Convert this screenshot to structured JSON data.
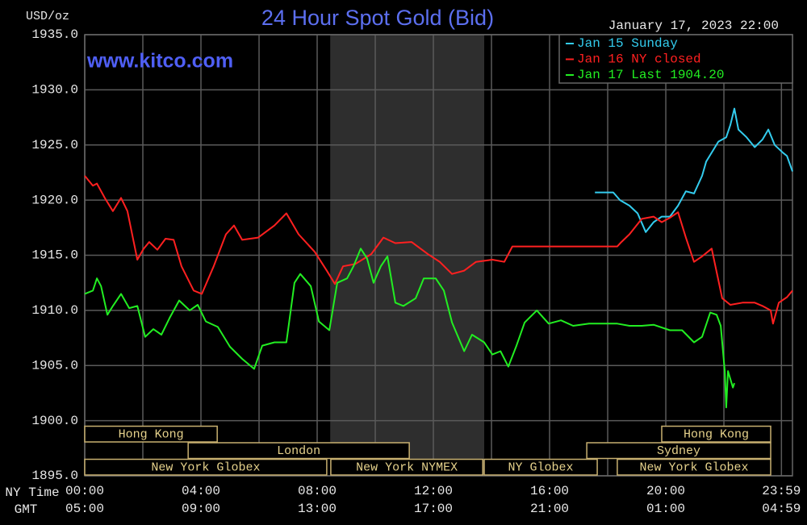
{
  "chart_data": {
    "type": "line",
    "title": "24 Hour Spot Gold (Bid)",
    "watermark": "www.kitco.com",
    "y_unit": "USD/oz",
    "timestamp": "January 17, 2023 22:00",
    "x_label": "NY Time",
    "x2_label": "GMT",
    "xlim": [
      0,
      24.36
    ],
    "ylim": [
      1895,
      1935
    ],
    "yticks": [
      {
        "value": 1895,
        "label": "1895.0"
      },
      {
        "value": 1900,
        "label": "1900.0"
      },
      {
        "value": 1905,
        "label": "1905.0"
      },
      {
        "value": 1910,
        "label": "1910.0"
      },
      {
        "value": 1915,
        "label": "1915.0"
      },
      {
        "value": 1920,
        "label": "1920.0"
      },
      {
        "value": 1925,
        "label": "1925.0"
      },
      {
        "value": 1930,
        "label": "1930.0"
      },
      {
        "value": 1935,
        "label": "1935.0"
      }
    ],
    "xticks": [
      {
        "value": 0,
        "label": "00:00"
      },
      {
        "value": 4,
        "label": "04:00"
      },
      {
        "value": 8,
        "label": "08:00"
      },
      {
        "value": 12,
        "label": "12:00"
      },
      {
        "value": 16,
        "label": "16:00"
      },
      {
        "value": 20,
        "label": "20:00"
      },
      {
        "value": 23.98,
        "label": "23:59"
      }
    ],
    "gmt_labels": [
      "05:00",
      "09:00",
      "13:00",
      "17:00",
      "21:00",
      "01:00",
      "04:59"
    ],
    "xminorticks": [
      2,
      6,
      10,
      14,
      18,
      22
    ],
    "grid": true,
    "legend": "upper right",
    "shaded": [
      8.45,
      13.75
    ],
    "session_rows": [
      [
        {
          "name": "Hong Kong",
          "start": 0,
          "end": 4.56
        },
        {
          "name": "Hong Kong",
          "start": 19.86,
          "end": 23.61
        }
      ],
      [
        {
          "name": "London",
          "start": 3.56,
          "end": 11.17
        },
        {
          "name": "Sydney",
          "start": 17.28,
          "end": 23.61
        }
      ],
      [
        {
          "name": "New York Globex",
          "start": 0,
          "end": 8.33
        },
        {
          "name": "New York NYMEX",
          "start": 8.47,
          "end": 13.7
        },
        {
          "name": "NY Globex",
          "start": 13.75,
          "end": 17.64
        },
        {
          "name": "New York Globex",
          "start": 18.33,
          "end": 23.61
        }
      ]
    ],
    "series": [
      {
        "name": "Jan 15 Sunday",
        "color": "#33ccee",
        "x": [
          17.56,
          18.19,
          18.42,
          18.75,
          19.03,
          19.31,
          19.58,
          19.86,
          20.14,
          20.42,
          20.69,
          20.97,
          21.25,
          21.39,
          21.53,
          21.81,
          22.08,
          22.22,
          22.36,
          22.5,
          22.78,
          23.06,
          23.33,
          23.53,
          23.75,
          24.03,
          24.17,
          24.36
        ],
        "values": [
          1920.7,
          1920.7,
          1920.0,
          1919.5,
          1918.8,
          1917.1,
          1918.0,
          1918.5,
          1918.5,
          1919.5,
          1920.8,
          1920.6,
          1922.2,
          1923.5,
          1924.1,
          1925.3,
          1925.7,
          1926.8,
          1928.3,
          1926.4,
          1925.7,
          1924.8,
          1925.5,
          1926.4,
          1925.0,
          1924.3,
          1924.0,
          1922.6
        ]
      },
      {
        "name": "Jan 16 NY closed",
        "color": "#ff2020",
        "x": [
          0,
          0.28,
          0.42,
          0.69,
          0.97,
          1.25,
          1.47,
          1.81,
          2.03,
          2.22,
          2.5,
          2.78,
          3.06,
          3.33,
          3.75,
          4.03,
          4.44,
          4.86,
          5.14,
          5.42,
          5.97,
          6.53,
          6.94,
          7.36,
          7.92,
          8.33,
          8.61,
          8.89,
          9.31,
          9.86,
          10.28,
          10.69,
          11.25,
          11.81,
          12.22,
          12.64,
          13.06,
          13.47,
          14.03,
          14.44,
          14.72,
          16.53,
          18.33,
          18.47,
          18.75,
          19.17,
          19.58,
          19.86,
          20.14,
          20.42,
          20.69,
          20.97,
          21.25,
          21.58,
          21.94,
          22.22,
          22.64,
          23.06,
          23.33,
          23.61,
          23.69,
          23.89,
          24.17,
          24.36
        ],
        "values": [
          1922.2,
          1921.3,
          1921.5,
          1920.2,
          1919.0,
          1920.2,
          1919.0,
          1914.6,
          1915.6,
          1916.2,
          1915.5,
          1916.5,
          1916.4,
          1914.0,
          1911.8,
          1911.5,
          1914.0,
          1916.9,
          1917.7,
          1916.4,
          1916.6,
          1917.7,
          1918.8,
          1916.9,
          1915.3,
          1913.6,
          1912.4,
          1914.0,
          1914.2,
          1915.1,
          1916.6,
          1916.1,
          1916.2,
          1915.1,
          1914.4,
          1913.3,
          1913.6,
          1914.4,
          1914.6,
          1914.4,
          1915.8,
          1915.8,
          1915.8,
          1916.2,
          1916.9,
          1918.3,
          1918.5,
          1918.0,
          1918.4,
          1918.9,
          1916.6,
          1914.4,
          1914.9,
          1915.6,
          1911.1,
          1910.5,
          1910.7,
          1910.7,
          1910.4,
          1910.0,
          1908.8,
          1910.7,
          1911.2,
          1911.8
        ]
      },
      {
        "name": "Jan 17 Last 1904.20",
        "color": "#22ee22",
        "x": [
          0,
          0.28,
          0.42,
          0.56,
          0.78,
          0.97,
          1.25,
          1.53,
          1.81,
          2.08,
          2.36,
          2.64,
          2.92,
          3.25,
          3.61,
          3.89,
          4.17,
          4.58,
          5.0,
          5.42,
          5.83,
          6.11,
          6.53,
          6.94,
          7.22,
          7.42,
          7.78,
          8.06,
          8.42,
          8.69,
          9.03,
          9.25,
          9.5,
          9.72,
          9.94,
          10.19,
          10.42,
          10.69,
          10.97,
          11.39,
          11.67,
          12.08,
          12.36,
          12.64,
          13.06,
          13.33,
          13.75,
          14.03,
          14.31,
          14.58,
          14.86,
          15.14,
          15.56,
          15.97,
          16.39,
          16.81,
          17.36,
          18.33,
          18.75,
          19.17,
          19.58,
          20.14,
          20.56,
          20.97,
          21.25,
          21.53,
          21.75,
          21.89,
          22.03,
          22.08,
          22.14,
          22.31,
          22.36
        ],
        "values": [
          1911.5,
          1911.8,
          1912.9,
          1912.2,
          1909.6,
          1910.4,
          1911.5,
          1910.2,
          1910.4,
          1907.6,
          1908.3,
          1907.8,
          1909.3,
          1910.9,
          1910.0,
          1910.5,
          1909.0,
          1908.5,
          1906.7,
          1905.6,
          1904.7,
          1906.8,
          1907.1,
          1907.1,
          1912.5,
          1913.3,
          1912.2,
          1909.0,
          1908.2,
          1912.5,
          1912.9,
          1914.0,
          1915.6,
          1914.7,
          1912.5,
          1914.0,
          1914.9,
          1910.7,
          1910.4,
          1911.1,
          1912.9,
          1912.9,
          1911.8,
          1908.9,
          1906.3,
          1907.8,
          1907.1,
          1906.0,
          1906.3,
          1904.9,
          1906.8,
          1908.9,
          1910.0,
          1908.8,
          1909.1,
          1908.6,
          1908.8,
          1908.8,
          1908.6,
          1908.6,
          1908.7,
          1908.2,
          1908.2,
          1907.1,
          1907.6,
          1909.8,
          1909.6,
          1908.6,
          1904.5,
          1901.2,
          1904.5,
          1903.0,
          1903.4
        ]
      }
    ]
  }
}
